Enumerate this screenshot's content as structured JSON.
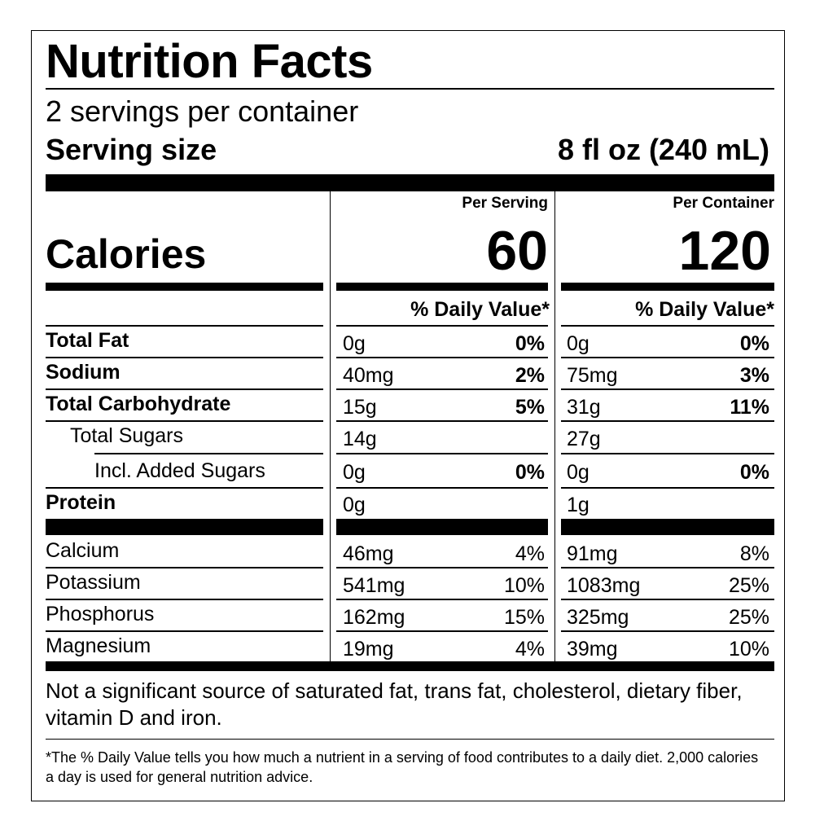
{
  "title": "Nutrition Facts",
  "servings_per_container": "2 servings per container",
  "serving_size_label": "Serving size",
  "serving_size_value": "8 fl oz (240 mL)",
  "col_headers": {
    "per_serving": "Per Serving",
    "per_container": "Per Container"
  },
  "calories_label": "Calories",
  "calories": {
    "per_serving": "60",
    "per_container": "120"
  },
  "dv_header": "% Daily Value*",
  "nutrients": [
    {
      "name": "Total Fat",
      "s_amt": "0g",
      "s_pct": "0%",
      "c_amt": "0g",
      "c_pct": "0%"
    },
    {
      "name": "Sodium",
      "s_amt": "40mg",
      "s_pct": "2%",
      "c_amt": "75mg",
      "c_pct": "3%"
    },
    {
      "name": "Total Carbohydrate",
      "s_amt": "15g",
      "s_pct": "5%",
      "c_amt": "31g",
      "c_pct": "11%"
    },
    {
      "name": "Total Sugars",
      "s_amt": "14g",
      "s_pct": "",
      "c_amt": "27g",
      "c_pct": ""
    },
    {
      "name": "Incl. Added Sugars",
      "s_amt": "0g",
      "s_pct": "0%",
      "c_amt": "0g",
      "c_pct": "0%"
    },
    {
      "name": "Protein",
      "s_amt": "0g",
      "s_pct": "",
      "c_amt": "1g",
      "c_pct": ""
    }
  ],
  "minerals": [
    {
      "name": "Calcium",
      "s_amt": "46mg",
      "s_pct": "4%",
      "c_amt": "91mg",
      "c_pct": "8%"
    },
    {
      "name": "Potassium",
      "s_amt": "541mg",
      "s_pct": "10%",
      "c_amt": "1083mg",
      "c_pct": "25%"
    },
    {
      "name": "Phosphorus",
      "s_amt": "162mg",
      "s_pct": "15%",
      "c_amt": "325mg",
      "c_pct": "25%"
    },
    {
      "name": "Magnesium",
      "s_amt": "19mg",
      "s_pct": "4%",
      "c_amt": "39mg",
      "c_pct": "10%"
    }
  ],
  "footnote_1": "Not a significant source of saturated fat, trans fat, cholesterol, dietary fiber, vitamin D and iron.",
  "footnote_2": "*The % Daily Value tells you how much a nutrient in a serving of food contributes to a daily diet. 2,000 calories a day is used for general nutrition advice."
}
